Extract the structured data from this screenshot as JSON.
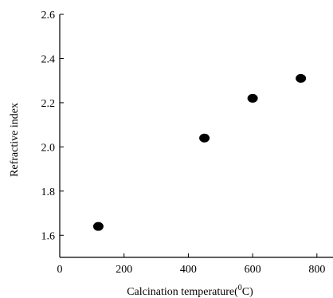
{
  "chart_data": {
    "type": "scatter",
    "title": "",
    "xlabel": "Calcination temperature(",
    "xlabel_sup": "0",
    "xlabel_tail": "C)",
    "ylabel": "Refractive index",
    "xlim": [
      0,
      850
    ],
    "ylim": [
      1.5,
      2.6
    ],
    "xticks": [
      0,
      200,
      400,
      600,
      800
    ],
    "xtick_labels": [
      "0",
      "200",
      "400",
      "600",
      "800"
    ],
    "yticks": [
      1.6,
      1.8,
      2.0,
      2.2,
      2.4,
      2.6
    ],
    "ytick_labels": [
      "1.6",
      "1.8",
      "2.0",
      "2.2",
      "2.4",
      "2.6"
    ],
    "grid": false,
    "series": [
      {
        "x": [
          120,
          450,
          600,
          750
        ],
        "y": [
          1.64,
          2.04,
          2.22,
          2.31
        ]
      }
    ],
    "marker_color": "#000000"
  }
}
